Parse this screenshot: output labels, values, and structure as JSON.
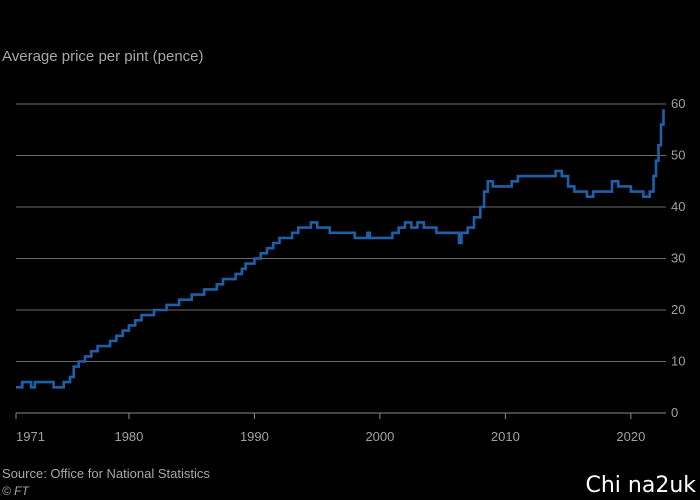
{
  "subtitle": "Average price per pint (pence)",
  "source": "Source: Office for National Statistics",
  "credit": "© FT",
  "watermark": "Chi na2uk",
  "colors": {
    "background": "#000000",
    "line": "#1f5fa8",
    "grid": "#6a6a6a",
    "text": "#a0a0a0"
  },
  "chart_data": {
    "type": "line",
    "title": "",
    "ylabel": "Average price per pint (pence)",
    "xlabel": "",
    "xlim": [
      1971,
      2022.8
    ],
    "ylim": [
      0,
      60
    ],
    "x_ticks": [
      1971,
      1980,
      1990,
      2000,
      2010,
      2020
    ],
    "y_ticks": [
      0,
      10,
      20,
      30,
      40,
      50,
      60
    ],
    "grid": true,
    "y_axis_position": "right",
    "series": [
      {
        "name": "",
        "step": true,
        "x": [
          1971.0,
          1971.5,
          1972.2,
          1972.5,
          1974.0,
          1974.8,
          1975.0,
          1975.3,
          1975.6,
          1976.0,
          1976.5,
          1977.0,
          1977.5,
          1978.0,
          1978.5,
          1979.0,
          1979.5,
          1980.0,
          1980.5,
          1981.0,
          1982.0,
          1983.0,
          1984.0,
          1985.0,
          1986.0,
          1987.0,
          1987.5,
          1988.0,
          1988.5,
          1989.0,
          1989.3,
          1989.6,
          1990.0,
          1990.5,
          1991.0,
          1991.5,
          1992.0,
          1992.5,
          1993.0,
          1993.5,
          1994.0,
          1994.5,
          1995.0,
          1995.2,
          1995.5,
          1996.0,
          1997.0,
          1998.0,
          1999.0,
          1999.2,
          1999.5,
          2000.0,
          2001.0,
          2001.5,
          2002.0,
          2002.5,
          2003.0,
          2003.5,
          2004.0,
          2004.5,
          2005.0,
          2006.0,
          2006.3,
          2006.5,
          2007.0,
          2007.5,
          2008.0,
          2008.3,
          2008.6,
          2009.0,
          2010.0,
          2010.5,
          2011.0,
          2012.0,
          2013.0,
          2014.0,
          2014.5,
          2015.0,
          2015.5,
          2016.0,
          2016.5,
          2017.0,
          2018.0,
          2018.5,
          2019.0,
          2019.5,
          2020.0,
          2020.5,
          2021.0,
          2021.5,
          2021.8,
          2022.0,
          2022.2,
          2022.4,
          2022.6
        ],
        "values": [
          5,
          6,
          5,
          6,
          5,
          6,
          6,
          7,
          9,
          10,
          11,
          12,
          13,
          13,
          14,
          15,
          16,
          17,
          18,
          19,
          20,
          21,
          22,
          23,
          24,
          25,
          26,
          26,
          27,
          28,
          29,
          29,
          30,
          31,
          32,
          33,
          34,
          34,
          35,
          36,
          36,
          37,
          36,
          36,
          36,
          35,
          35,
          34,
          35,
          34,
          34,
          34,
          35,
          36,
          37,
          36,
          37,
          36,
          36,
          35,
          35,
          35,
          33,
          35,
          36,
          38,
          40,
          43,
          45,
          44,
          44,
          45,
          46,
          46,
          46,
          47,
          46,
          44,
          43,
          43,
          42,
          43,
          43,
          45,
          44,
          44,
          43,
          43,
          42,
          43,
          46,
          49,
          52,
          56,
          59
        ]
      }
    ]
  }
}
